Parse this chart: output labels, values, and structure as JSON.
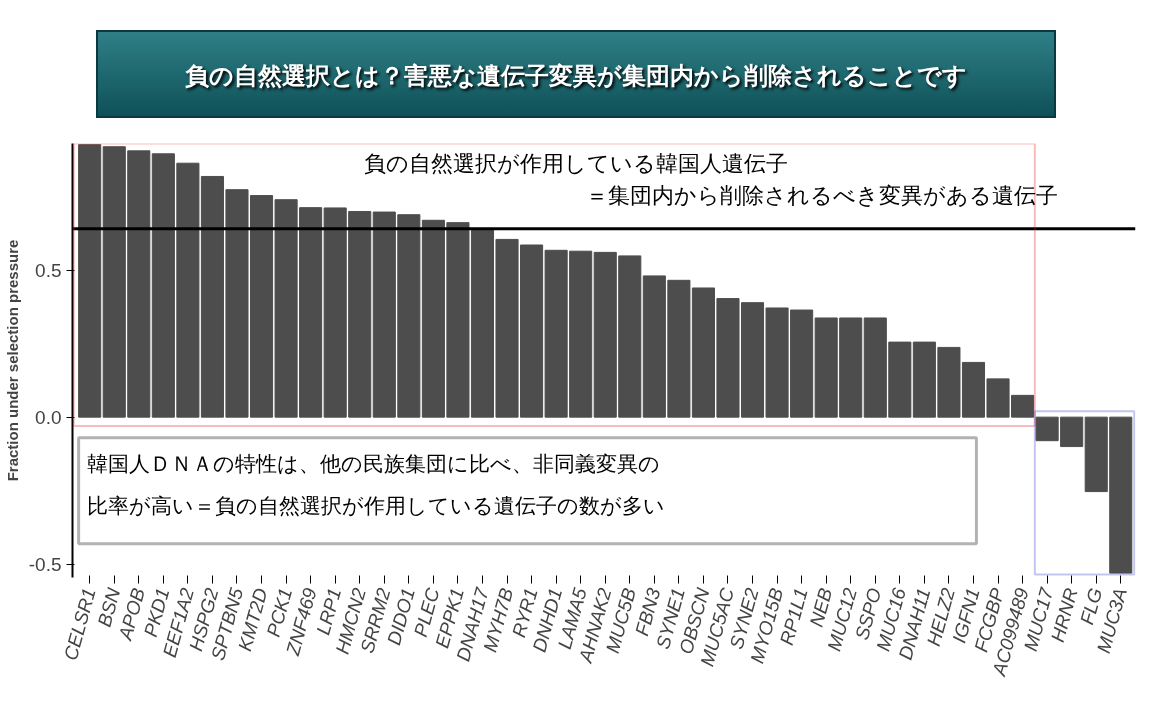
{
  "chart_data": {
    "type": "bar",
    "title": "負の自然選択とは？害悪な遺伝子変異が集団内から削除されることです",
    "ylabel": "Fraction under selection pressure",
    "categories": [
      "CELSR1",
      "BSN",
      "APOB",
      "PKD1",
      "EEF1A2",
      "HSPG2",
      "SPTBN5",
      "KMT2D",
      "PCK1",
      "ZNF469",
      "LRP1",
      "HMCN2",
      "SRRM2",
      "DIDO1",
      "PLEC",
      "EPPK1",
      "DNAH17",
      "MYH7B",
      "RYR1",
      "DNHD1",
      "LAMA5",
      "AHNAK2",
      "MUC5B",
      "FBN3",
      "SYNE1",
      "OBSCN",
      "MUC5AC",
      "SYNE2",
      "MYO15B",
      "RP1L1",
      "NEB",
      "MUC12",
      "SSPO",
      "MUC16",
      "DNAH11",
      "HELZ2",
      "IGFN1",
      "FCGBP",
      "AC099489",
      "MUC17",
      "HRNR",
      "FLG",
      "MUC3A"
    ],
    "values": [
      0.926,
      0.919,
      0.905,
      0.895,
      0.863,
      0.818,
      0.773,
      0.753,
      0.739,
      0.712,
      0.711,
      0.699,
      0.697,
      0.688,
      0.669,
      0.661,
      0.637,
      0.604,
      0.585,
      0.567,
      0.564,
      0.56,
      0.548,
      0.48,
      0.465,
      0.439,
      0.403,
      0.389,
      0.371,
      0.364,
      0.337,
      0.337,
      0.337,
      0.255,
      0.255,
      0.237,
      0.186,
      0.13,
      0.074,
      -0.08,
      -0.1,
      -0.253,
      -0.53
    ],
    "color": "#4d4d4d",
    "ylim": [
      -0.545,
      0.93
    ],
    "yticks": [
      -0.5,
      {
        "value": 0,
        "label": "0.0"
      },
      0.5
    ],
    "grid": false,
    "ref_lines": [
      {
        "axis": "y",
        "value": 0.64,
        "color": "#000000"
      }
    ],
    "annotations": [
      "負の自然選択が作用している韓国人遺伝子",
      "＝集団内から削除されるべき変異がある遺伝子",
      "韓国人ＤＮＡの特性は、他の民族集団に比べ、非同義変異の",
      "比率が高い＝負の自然選択が作用している遺伝子の数が多い"
    ]
  }
}
